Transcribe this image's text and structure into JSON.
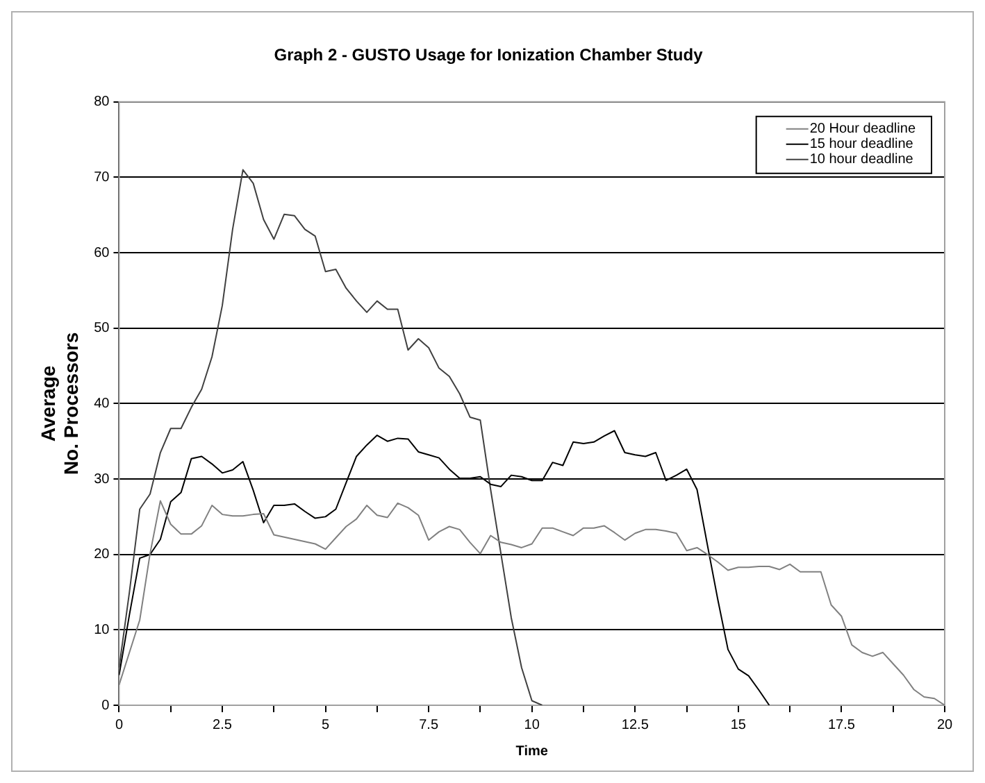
{
  "chart_data": {
    "type": "line",
    "title": "Graph 2 - GUSTO Usage for Ionization Chamber Study",
    "xlabel": "Time",
    "ylabel": "Average No. Processors",
    "x": [
      0,
      0.25,
      0.5,
      0.75,
      1,
      1.25,
      1.5,
      1.75,
      2,
      2.25,
      2.5,
      2.75,
      3,
      3.25,
      3.5,
      3.75,
      4,
      4.25,
      4.5,
      4.75,
      5,
      5.25,
      5.5,
      5.75,
      6,
      6.25,
      6.5,
      6.75,
      7,
      7.25,
      7.5,
      7.75,
      8,
      8.25,
      8.5,
      8.75,
      9,
      9.25,
      9.5,
      9.75,
      10,
      10.25,
      10.5,
      10.75,
      11,
      11.25,
      11.5,
      11.75,
      12,
      12.25,
      12.5,
      12.75,
      13,
      13.25,
      13.5,
      13.75,
      14,
      14.25,
      14.5,
      14.75,
      15,
      15.25,
      15.5,
      15.75,
      16,
      16.25,
      16.5,
      16.75,
      17,
      17.25,
      17.5,
      17.75,
      18,
      18.25,
      18.5,
      18.75,
      19,
      19.25,
      19.5,
      19.75,
      20
    ],
    "series": [
      {
        "name": "20 Hour deadline",
        "color": "#808080",
        "values": [
          2.7,
          7,
          11.3,
          20.1,
          27.1,
          24,
          22.7,
          22.7,
          23.8,
          26.5,
          25.3,
          25.1,
          25.1,
          25.3,
          25.4,
          22.6,
          22.3,
          22,
          21.7,
          21.4,
          20.7,
          22.2,
          23.7,
          24.7,
          26.5,
          25.2,
          24.9,
          26.8,
          26.2,
          25.2,
          21.9,
          23,
          23.7,
          23.3,
          21.6,
          20.1,
          22.5,
          21.6,
          21.3,
          20.9,
          21.4,
          23.5,
          23.5,
          23,
          22.5,
          23.5,
          23.5,
          23.8,
          22.9,
          21.9,
          22.8,
          23.3,
          23.3,
          23.1,
          22.8,
          20.5,
          20.9,
          20,
          19,
          17.9,
          18.3,
          18.3,
          18.4,
          18.4,
          18,
          18.7,
          17.7,
          17.7,
          17.7,
          13.3,
          11.8,
          8,
          7,
          6.5,
          7,
          5.5,
          4,
          2.1,
          1.1,
          0.9,
          0
        ]
      },
      {
        "name": "15 hour deadline",
        "color": "#000000",
        "values": [
          4,
          12,
          19.5,
          20,
          22,
          27,
          28.2,
          32.7,
          33,
          32,
          30.8,
          31.2,
          32.3,
          28.5,
          24.2,
          26.5,
          26.5,
          26.7,
          25.7,
          24.8,
          25,
          26,
          29.5,
          33,
          34.5,
          35.8,
          35,
          35.4,
          35.3,
          33.6,
          33.2,
          32.8,
          31.3,
          30.1,
          30.1,
          30.3,
          29.3,
          29,
          30.5,
          30.3,
          29.8,
          29.8,
          32.2,
          31.8,
          34.9,
          34.7,
          34.9,
          35.7,
          36.4,
          33.5,
          33.2,
          33,
          33.5,
          29.8,
          30.5,
          31.3,
          28.6,
          21.3,
          14.1,
          7.4,
          4.8,
          3.9,
          2,
          0,
          null,
          null,
          null,
          null,
          null,
          null,
          null,
          null,
          null,
          null,
          null,
          null,
          null,
          null,
          null,
          null,
          null
        ]
      },
      {
        "name": "10 hour deadline",
        "color": "#404040",
        "values": [
          5,
          15,
          26,
          28,
          33.5,
          36.7,
          36.7,
          39.5,
          41.9,
          46.2,
          53,
          63.1,
          71,
          69.2,
          64.4,
          61.8,
          65.1,
          64.9,
          63.1,
          62.2,
          57.5,
          57.8,
          55.3,
          53.6,
          52.1,
          53.6,
          52.5,
          52.5,
          47.1,
          48.6,
          47.4,
          44.7,
          43.6,
          41.3,
          38.2,
          37.8,
          28.6,
          20.1,
          11.6,
          5,
          0.6,
          0,
          null,
          null,
          null,
          null,
          null,
          null,
          null,
          null,
          null,
          null,
          null,
          null,
          null,
          null,
          null,
          null,
          null,
          null,
          null,
          null,
          null,
          null,
          null,
          null,
          null,
          null,
          null,
          null,
          null,
          null,
          null,
          null,
          null,
          null,
          null,
          null,
          null,
          null,
          null
        ]
      }
    ],
    "xlim": [
      0,
      20
    ],
    "xticks": [
      0,
      {
        "value": 1.25,
        "label": null
      },
      2.5,
      {
        "value": 3.75,
        "label": null
      },
      5,
      {
        "value": 6.25,
        "label": null
      },
      7.5,
      {
        "value": 8.75,
        "label": null
      },
      10,
      {
        "value": 11.25,
        "label": null
      },
      12.5,
      {
        "value": 13.75,
        "label": null
      },
      15,
      {
        "value": 16.25,
        "label": null
      },
      17.5,
      {
        "value": 18.75,
        "label": null
      },
      20
    ],
    "ylim": [
      0,
      80
    ],
    "yticks": [
      0,
      10,
      20,
      30,
      40,
      50,
      60,
      70,
      80
    ],
    "grid": "y",
    "legend": "top right",
    "marker": "none",
    "line_style": "solid"
  }
}
